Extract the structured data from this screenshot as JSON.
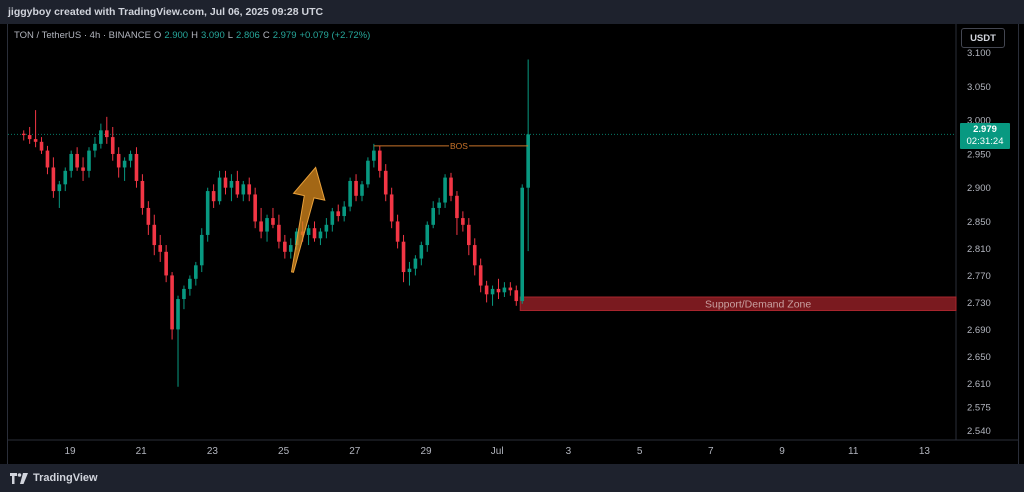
{
  "header": {
    "text": "jiggyboy created with TradingView.com, Jul 06, 2025 09:28 UTC"
  },
  "legend": {
    "symbol": "TON / TetherUS · 4h · BINANCE",
    "o_label": "O",
    "o_value": "2.900",
    "h_label": "H",
    "h_value": "3.090",
    "l_label": "L",
    "l_value": "2.806",
    "c_label": "C",
    "c_value": "2.979",
    "change": "+0.079 (+2.72%)"
  },
  "currency": "USDT",
  "last_price": {
    "price": "2.979",
    "countdown": "02:31:24"
  },
  "footer": {
    "brand": "TradingView"
  },
  "colors": {
    "up": "#089981",
    "down": "#f23645",
    "zone": "#7a1a1f",
    "bos": "#c9742a",
    "arrow": "#d98a1c"
  },
  "chart_data": {
    "type": "candlestick",
    "y_ticks": [
      "3.100",
      "3.050",
      "3.000",
      "2.950",
      "2.900",
      "2.850",
      "2.810",
      "2.770",
      "2.730",
      "2.690",
      "2.650",
      "2.610",
      "2.575",
      "2.540"
    ],
    "y_tick_values": [
      3.1,
      3.05,
      3.0,
      2.95,
      2.9,
      2.85,
      2.81,
      2.77,
      2.73,
      2.69,
      2.65,
      2.61,
      2.575,
      2.54
    ],
    "ylim": [
      2.535,
      3.11
    ],
    "x_ticks": [
      {
        "label": "19",
        "day": 0
      },
      {
        "label": "21",
        "day": 2
      },
      {
        "label": "23",
        "day": 4
      },
      {
        "label": "25",
        "day": 6
      },
      {
        "label": "27",
        "day": 8
      },
      {
        "label": "29",
        "day": 10
      },
      {
        "label": "Jul",
        "day": 12
      },
      {
        "label": "3",
        "day": 14
      },
      {
        "label": "5",
        "day": 16
      },
      {
        "label": "7",
        "day": 18
      },
      {
        "label": "9",
        "day": 20
      },
      {
        "label": "11",
        "day": 22
      },
      {
        "label": "13",
        "day": 24
      }
    ],
    "x_start_day": -1.3,
    "candle_days_step": 0.1667,
    "current_price": 2.979,
    "candles": [
      [
        2.98,
        2.985,
        2.97,
        2.978
      ],
      [
        2.978,
        2.99,
        2.965,
        2.972
      ],
      [
        2.972,
        3.015,
        2.96,
        2.968
      ],
      [
        2.968,
        2.975,
        2.95,
        2.955
      ],
      [
        2.955,
        2.962,
        2.92,
        2.93
      ],
      [
        2.93,
        2.945,
        2.885,
        2.895
      ],
      [
        2.895,
        2.91,
        2.87,
        2.905
      ],
      [
        2.905,
        2.93,
        2.895,
        2.925
      ],
      [
        2.925,
        2.955,
        2.915,
        2.95
      ],
      [
        2.95,
        2.96,
        2.925,
        2.93
      ],
      [
        2.93,
        2.945,
        2.91,
        2.925
      ],
      [
        2.925,
        2.96,
        2.915,
        2.955
      ],
      [
        2.955,
        2.975,
        2.945,
        2.965
      ],
      [
        2.965,
        2.995,
        2.958,
        2.985
      ],
      [
        2.985,
        3.005,
        2.965,
        2.975
      ],
      [
        2.975,
        2.99,
        2.94,
        2.95
      ],
      [
        2.95,
        2.96,
        2.915,
        2.93
      ],
      [
        2.93,
        2.945,
        2.91,
        2.94
      ],
      [
        2.94,
        2.955,
        2.93,
        2.95
      ],
      [
        2.95,
        2.96,
        2.9,
        2.91
      ],
      [
        2.91,
        2.92,
        2.86,
        2.87
      ],
      [
        2.87,
        2.88,
        2.83,
        2.845
      ],
      [
        2.845,
        2.86,
        2.8,
        2.815
      ],
      [
        2.815,
        2.83,
        2.79,
        2.805
      ],
      [
        2.805,
        2.815,
        2.76,
        2.77
      ],
      [
        2.77,
        2.775,
        2.675,
        2.69
      ],
      [
        2.69,
        2.74,
        2.605,
        2.735
      ],
      [
        2.735,
        2.755,
        2.72,
        2.75
      ],
      [
        2.75,
        2.77,
        2.74,
        2.765
      ],
      [
        2.765,
        2.79,
        2.755,
        2.785
      ],
      [
        2.785,
        2.84,
        2.775,
        2.83
      ],
      [
        2.83,
        2.9,
        2.82,
        2.895
      ],
      [
        2.895,
        2.905,
        2.87,
        2.88
      ],
      [
        2.88,
        2.925,
        2.875,
        2.915
      ],
      [
        2.915,
        2.925,
        2.89,
        2.9
      ],
      [
        2.9,
        2.92,
        2.88,
        2.91
      ],
      [
        2.91,
        2.925,
        2.885,
        2.89
      ],
      [
        2.89,
        2.91,
        2.88,
        2.905
      ],
      [
        2.905,
        2.915,
        2.88,
        2.89
      ],
      [
        2.89,
        2.9,
        2.84,
        2.85
      ],
      [
        2.85,
        2.87,
        2.825,
        2.835
      ],
      [
        2.835,
        2.86,
        2.82,
        2.855
      ],
      [
        2.855,
        2.87,
        2.84,
        2.845
      ],
      [
        2.845,
        2.86,
        2.81,
        2.82
      ],
      [
        2.82,
        2.83,
        2.795,
        2.805
      ],
      [
        2.805,
        2.825,
        2.795,
        2.815
      ],
      [
        2.815,
        2.84,
        2.808,
        2.835
      ],
      [
        2.835,
        2.85,
        2.82,
        2.83
      ],
      [
        2.83,
        2.845,
        2.815,
        2.84
      ],
      [
        2.84,
        2.85,
        2.82,
        2.825
      ],
      [
        2.825,
        2.84,
        2.815,
        2.835
      ],
      [
        2.835,
        2.855,
        2.825,
        2.845
      ],
      [
        2.845,
        2.87,
        2.835,
        2.865
      ],
      [
        2.865,
        2.875,
        2.85,
        2.858
      ],
      [
        2.858,
        2.88,
        2.85,
        2.872
      ],
      [
        2.872,
        2.915,
        2.865,
        2.91
      ],
      [
        2.91,
        2.92,
        2.88,
        2.888
      ],
      [
        2.888,
        2.91,
        2.88,
        2.905
      ],
      [
        2.905,
        2.945,
        2.9,
        2.94
      ],
      [
        2.94,
        2.965,
        2.93,
        2.955
      ],
      [
        2.955,
        2.962,
        2.915,
        2.925
      ],
      [
        2.925,
        2.935,
        2.88,
        2.89
      ],
      [
        2.89,
        2.9,
        2.84,
        2.85
      ],
      [
        2.85,
        2.86,
        2.81,
        2.82
      ],
      [
        2.82,
        2.83,
        2.76,
        2.775
      ],
      [
        2.775,
        2.79,
        2.755,
        2.78
      ],
      [
        2.78,
        2.8,
        2.77,
        2.795
      ],
      [
        2.795,
        2.82,
        2.785,
        2.815
      ],
      [
        2.815,
        2.85,
        2.805,
        2.845
      ],
      [
        2.845,
        2.88,
        2.84,
        2.87
      ],
      [
        2.87,
        2.885,
        2.86,
        2.878
      ],
      [
        2.878,
        2.92,
        2.87,
        2.915
      ],
      [
        2.915,
        2.922,
        2.88,
        2.888
      ],
      [
        2.888,
        2.895,
        2.83,
        2.855
      ],
      [
        2.855,
        2.865,
        2.835,
        2.845
      ],
      [
        2.845,
        2.855,
        2.8,
        2.815
      ],
      [
        2.815,
        2.825,
        2.77,
        2.785
      ],
      [
        2.785,
        2.795,
        2.745,
        2.755
      ],
      [
        2.755,
        2.762,
        2.73,
        2.742
      ],
      [
        2.742,
        2.755,
        2.725,
        2.75
      ],
      [
        2.75,
        2.765,
        2.735,
        2.745
      ],
      [
        2.745,
        2.76,
        2.738,
        2.752
      ],
      [
        2.752,
        2.76,
        2.74,
        2.748
      ],
      [
        2.748,
        2.755,
        2.725,
        2.732
      ],
      [
        2.732,
        2.905,
        2.728,
        2.9
      ],
      [
        2.9,
        3.09,
        2.806,
        2.979
      ]
    ],
    "annotations": {
      "bos": {
        "label": "BOS",
        "price": 2.962,
        "from_candle": 59,
        "to_candle": 85
      },
      "zone": {
        "label": "Support/Demand Zone",
        "top": 2.738,
        "bottom": 2.718,
        "from_candle": 84
      },
      "arrow": {
        "from_day": 6.25,
        "from_price": 2.775,
        "to_day": 6.9,
        "to_price": 2.93
      }
    }
  }
}
